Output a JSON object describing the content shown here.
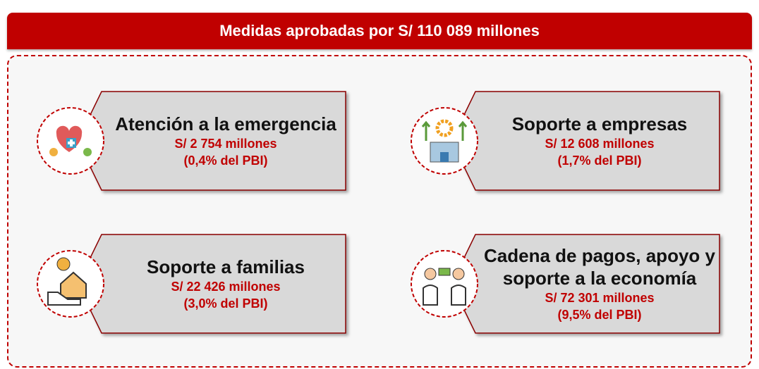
{
  "header": {
    "title": "Medidas aprobadas por S/ 110 089 millones"
  },
  "cards": [
    {
      "title": "Atención a la emergencia",
      "amount": "S/ 2 754 millones",
      "share": "(0,4% del PBI)"
    },
    {
      "title": "Soporte a empresas",
      "amount": "S/ 12 608 millones",
      "share": "(1,7% del PBI)"
    },
    {
      "title": "Soporte a familias",
      "amount": "S/ 22 426 millones",
      "share": "(3,0% del PBI)"
    },
    {
      "title": "Cadena de pagos, apoyo y soporte a la economía",
      "amount": "S/ 72 301 millones",
      "share": "(9,5% del PBI)"
    }
  ]
}
